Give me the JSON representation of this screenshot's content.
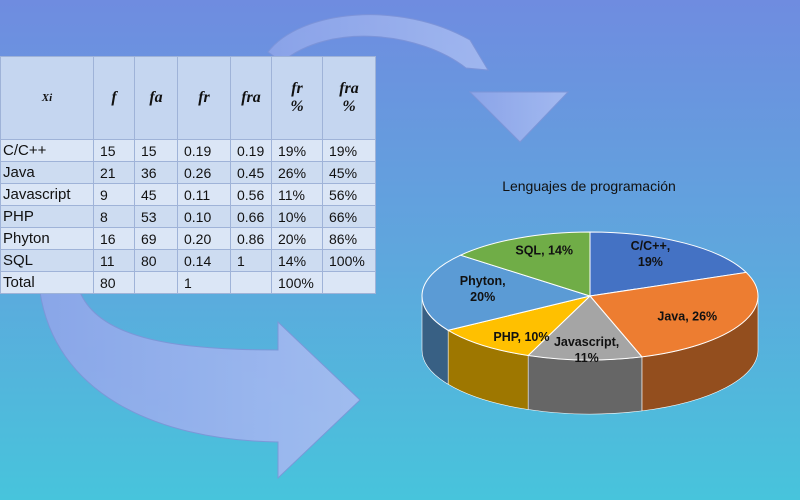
{
  "table": {
    "headers": [
      "Xi",
      "f",
      "fa",
      "fr",
      "fra",
      "fr\n%",
      "fra\n%"
    ],
    "rows": [
      [
        "C/C++",
        "15",
        "15",
        "0.19",
        "0.19",
        "19%",
        "19%"
      ],
      [
        "Java",
        "21",
        "36",
        "0.26",
        "0.45",
        "26%",
        "45%"
      ],
      [
        "Javascript",
        "9",
        "45",
        "0.11",
        "0.56",
        "11%",
        "56%"
      ],
      [
        "PHP",
        "8",
        "53",
        "0.10",
        "0.66",
        "10%",
        "66%"
      ],
      [
        "Phyton",
        "16",
        "69",
        "0.20",
        "0.86",
        "20%",
        "86%"
      ],
      [
        "SQL",
        "11",
        "80",
        "0.14",
        "1",
        "14%",
        "100%"
      ]
    ],
    "total": [
      "Total",
      "80",
      "",
      "1",
      "",
      "100%",
      ""
    ]
  },
  "chart_data": {
    "type": "pie",
    "title": "Lenguajes de programación",
    "categories": [
      "C/C++",
      "Java",
      "Javascript",
      "PHP",
      "Phyton",
      "SQL"
    ],
    "values": [
      19,
      26,
      11,
      10,
      20,
      14
    ],
    "labels": [
      "C/C++,\n19%",
      "Java, 26%",
      "Javascript,\n11%",
      "PHP, 10%",
      "Phyton,\n20%",
      "SQL, 14%"
    ],
    "colors": [
      "#4472c4",
      "#ed7d31",
      "#a5a5a5",
      "#ffc000",
      "#5b9bd5",
      "#70ad47"
    ]
  }
}
